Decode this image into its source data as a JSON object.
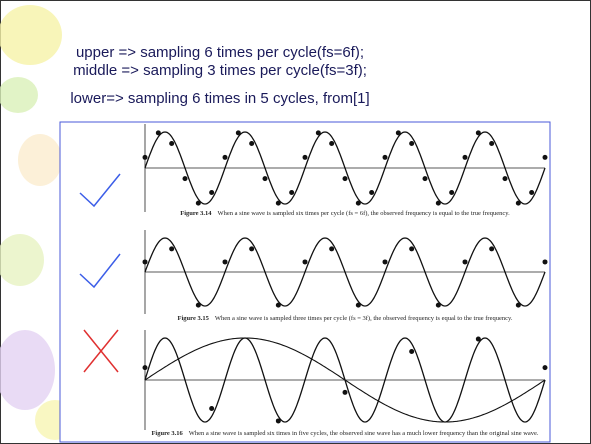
{
  "header": {
    "lines": [
      "upper => sampling 6 times per cycle(fs=6f);",
      "middle => sampling 3 times per cycle(fs=3f);",
      "lower=> sampling 6 times in 5 cycles, from[1]"
    ]
  },
  "figures": [
    {
      "label": "Figure 3.14",
      "caption": "When a sine wave is sampled six times per cycle (fs = 6f), the observed frequency is equal to the true frequency."
    },
    {
      "label": "Figure 3.15",
      "caption": "When a sine wave is sampled three times per cycle (fs = 3f), the observed frequency is equal to the true frequency."
    },
    {
      "label": "Figure 3.16",
      "caption": "When a sine wave is sampled six times in five cycles, the observed sine wave has a much lower frequency than the original sine wave."
    }
  ]
}
